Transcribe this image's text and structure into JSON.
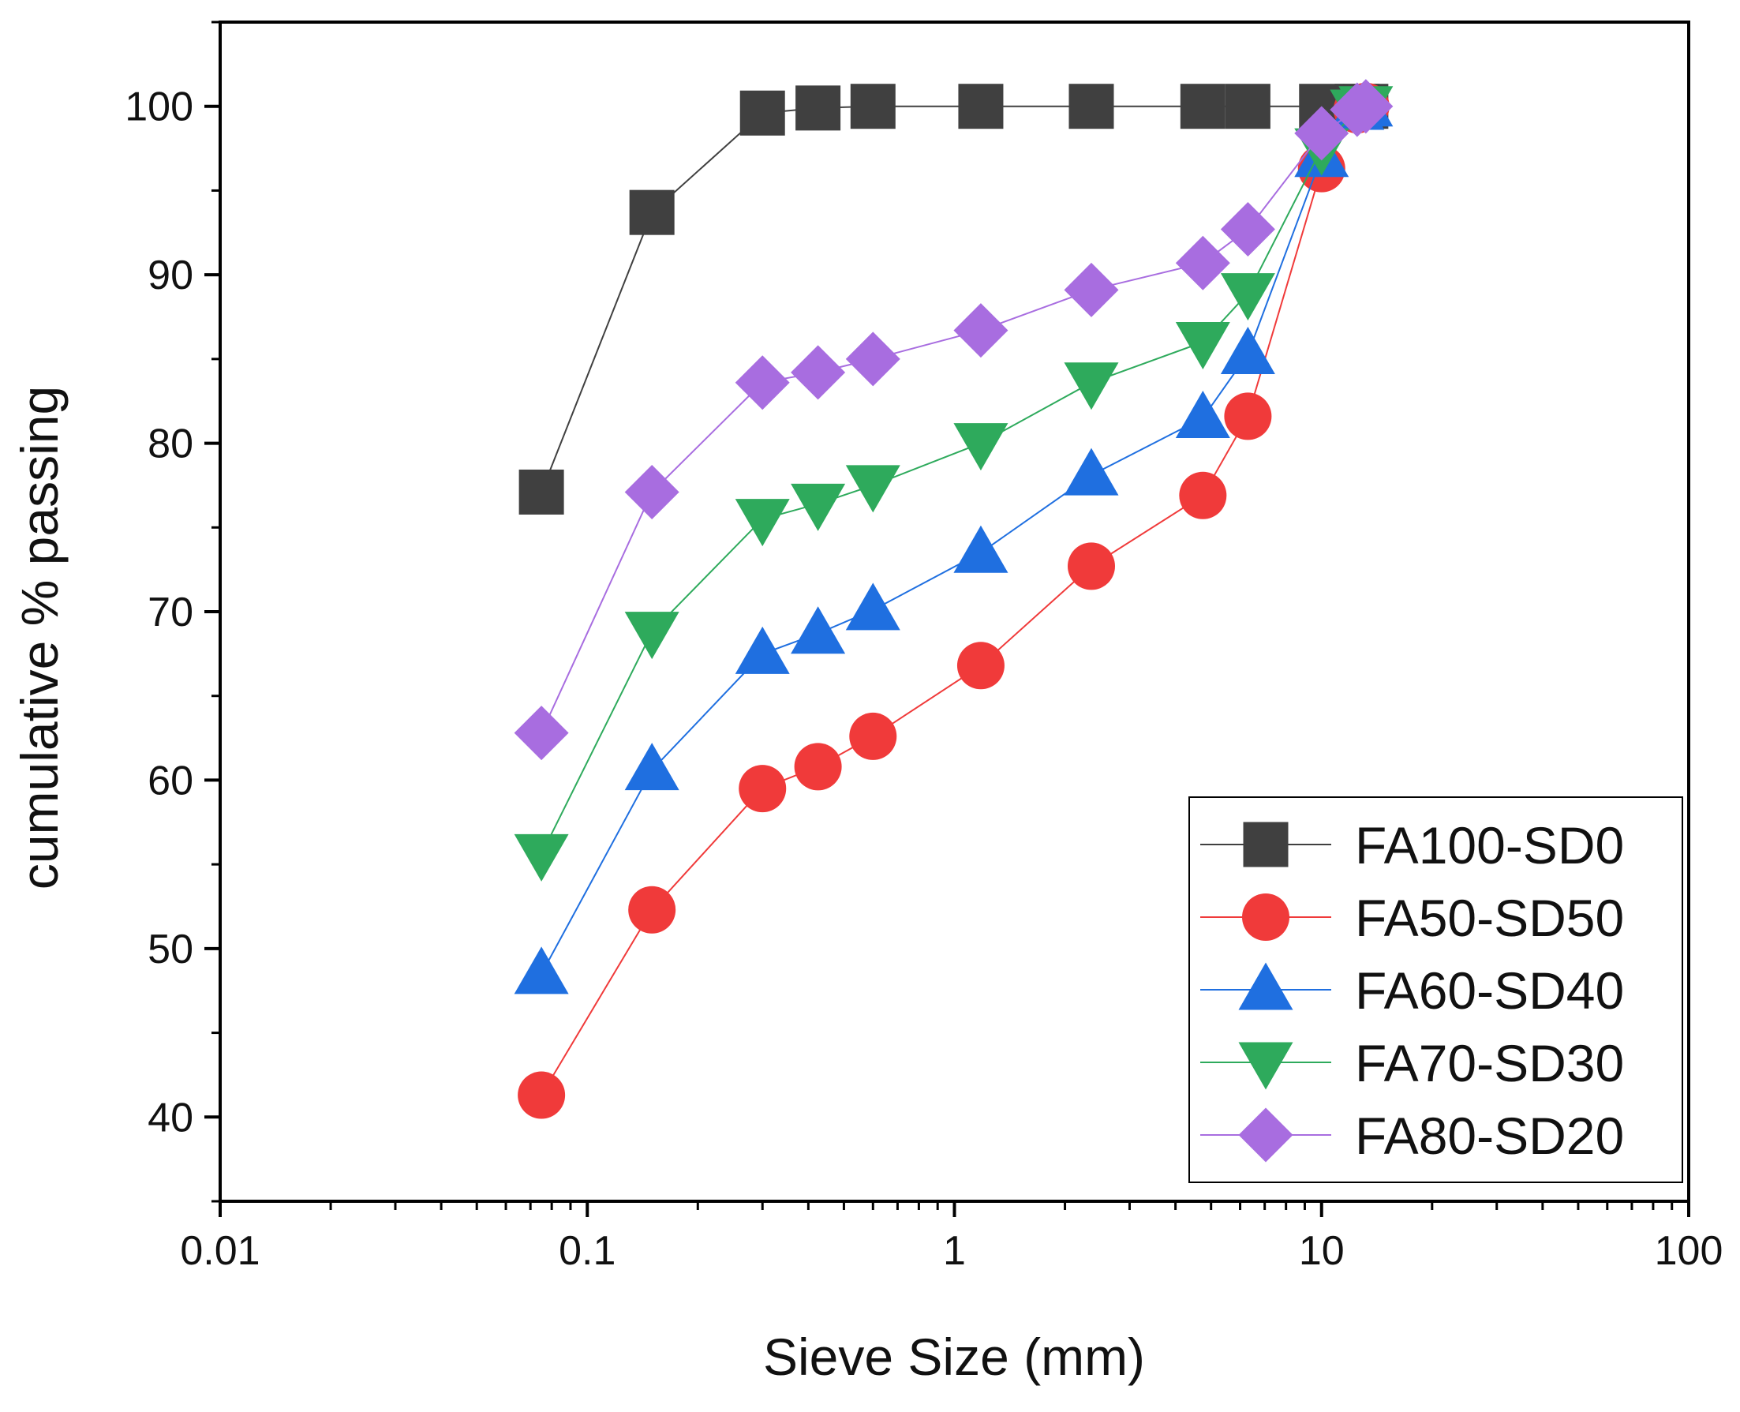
{
  "chart_data": {
    "type": "line",
    "title": "",
    "xlabel": "Sieve Size (mm)",
    "ylabel": "cumulative % passing",
    "xscale": "log",
    "xlim": [
      0.01,
      100
    ],
    "ylim": [
      35,
      105
    ],
    "x_ticks": [
      0.01,
      0.1,
      1,
      10,
      100
    ],
    "x_tick_labels": [
      "0.01",
      "0.1",
      "1",
      "10",
      "100"
    ],
    "y_ticks": [
      40,
      50,
      60,
      70,
      80,
      90,
      100
    ],
    "y_tick_labels": [
      "40",
      "50",
      "60",
      "70",
      "80",
      "90",
      "100"
    ],
    "grid": false,
    "legend_position": "bottom-right",
    "x": [
      0.075,
      0.15,
      0.3,
      0.425,
      0.6,
      1.18,
      2.36,
      4.75,
      6.3,
      10,
      12.5,
      13.2
    ],
    "series": [
      {
        "name": "FA100-SD0",
        "marker": "square",
        "color": "#404040",
        "values": [
          77.1,
          93.7,
          99.6,
          99.9,
          100,
          100,
          100,
          100,
          100,
          100,
          100,
          100
        ]
      },
      {
        "name": "FA50-SD50",
        "marker": "circle",
        "color": "#f03a3a",
        "values": [
          41.3,
          52.3,
          59.5,
          60.8,
          62.6,
          66.8,
          72.7,
          76.9,
          81.6,
          96.3,
          99.8,
          100
        ]
      },
      {
        "name": "FA60-SD40",
        "marker": "triangle-up",
        "color": "#1f6fe0",
        "values": [
          48.5,
          60.6,
          67.5,
          68.7,
          70.1,
          73.5,
          78.1,
          81.5,
          85.3,
          97.0,
          99.8,
          100
        ]
      },
      {
        "name": "FA70-SD30",
        "marker": "triangle-down",
        "color": "#2eaa5c",
        "values": [
          55.6,
          68.8,
          75.5,
          76.4,
          77.5,
          80.0,
          83.6,
          86.0,
          88.9,
          97.5,
          99.8,
          100
        ]
      },
      {
        "name": "FA80-SD20",
        "marker": "diamond",
        "color": "#a86de0",
        "values": [
          62.8,
          77.1,
          83.6,
          84.2,
          85.0,
          86.7,
          89.1,
          90.7,
          92.7,
          98.4,
          99.8,
          100
        ]
      }
    ]
  }
}
